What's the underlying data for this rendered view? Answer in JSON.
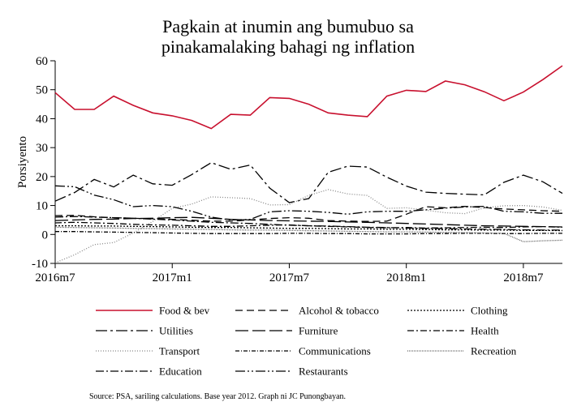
{
  "chart_data": {
    "type": "line",
    "title": [
      "Pagkain at inumin ang bumubuo sa",
      "pinakamalaking bahagi ng inflation"
    ],
    "xlabel": "",
    "ylabel": "Porsiyento",
    "ylim": [
      -10,
      60
    ],
    "yticks": [
      -10,
      0,
      10,
      20,
      30,
      40,
      50,
      60
    ],
    "xticks": [
      {
        "label": "2016m7",
        "index": 0
      },
      {
        "label": "2017m1",
        "index": 6
      },
      {
        "label": "2017m7",
        "index": 12
      },
      {
        "label": "2018m1",
        "index": 18
      },
      {
        "label": "2018m7",
        "index": 24
      }
    ],
    "x": [
      "2016m7",
      "2016m8",
      "2016m9",
      "2016m10",
      "2016m11",
      "2016m12",
      "2017m1",
      "2017m2",
      "2017m3",
      "2017m4",
      "2017m5",
      "2017m6",
      "2017m7",
      "2017m8",
      "2017m9",
      "2017m10",
      "2017m11",
      "2017m12",
      "2018m1",
      "2018m2",
      "2018m3",
      "2018m4",
      "2018m5",
      "2018m6",
      "2018m7",
      "2018m8",
      "2018m9"
    ],
    "series": [
      {
        "name": "Food & bev",
        "color": "#c8102e",
        "dash": "",
        "values": [
          49,
          43.2,
          43.2,
          47.8,
          44.6,
          42,
          41,
          39.4,
          36.6,
          41.5,
          41.2,
          47.3,
          47,
          45,
          42,
          41.2,
          40.7,
          47.8,
          49.8,
          49.4,
          53,
          51.7,
          49.3,
          46.2,
          49.2,
          53.5,
          58.3
        ]
      },
      {
        "name": "Alcohol & tobacco",
        "color": "#000000",
        "dash": "9,5",
        "values": [
          6.5,
          6.6,
          6.1,
          5.8,
          5.6,
          5.4,
          5.2,
          4.9,
          4.6,
          4.6,
          5.0,
          5.5,
          5.8,
          5.6,
          4.8,
          4.6,
          4.5,
          4.6,
          7.0,
          9.6,
          9.2,
          9.7,
          9.3,
          8.8,
          8.5,
          8.2,
          8.0
        ]
      },
      {
        "name": "Clothing",
        "color": "#000000",
        "dash": "2,2",
        "values": [
          3.0,
          3.0,
          2.9,
          2.9,
          2.8,
          2.7,
          2.6,
          2.5,
          2.4,
          2.4,
          2.3,
          2.2,
          2.1,
          2.1,
          2.0,
          1.9,
          1.9,
          1.8,
          1.8,
          1.7,
          1.6,
          1.6,
          1.5,
          1.5,
          1.4,
          1.4,
          1.3
        ]
      },
      {
        "name": "Utilities",
        "color": "#000000",
        "dash": "14,4,3,4",
        "values": [
          11.5,
          14.5,
          19,
          16.4,
          20.5,
          17.5,
          17,
          20.7,
          24.8,
          22.5,
          24,
          16,
          11,
          12.4,
          21.5,
          23.6,
          23.3,
          19.8,
          16.7,
          14.6,
          14.2,
          13.9,
          13.7,
          18,
          20.5,
          18.2,
          14.2
        ]
      },
      {
        "name": "Furniture",
        "color": "#000000",
        "dash": "16,5",
        "values": [
          4.8,
          5.0,
          5.2,
          5.3,
          5.5,
          5.6,
          5.8,
          5.9,
          5.6,
          5.2,
          5.0,
          4.8,
          4.7,
          4.6,
          4.5,
          4.3,
          4.2,
          4.0,
          3.8,
          3.6,
          3.4,
          3.2,
          3.0,
          2.9,
          2.8,
          2.7,
          2.6
        ]
      },
      {
        "name": "Health",
        "color": "#000000",
        "dash": "8,3,2,3",
        "values": [
          4.0,
          4.2,
          4.0,
          3.8,
          3.5,
          3.3,
          3.2,
          3.0,
          2.8,
          2.8,
          3.0,
          3.2,
          3.3,
          3.0,
          2.8,
          2.6,
          2.4,
          2.3,
          2.4,
          2.2,
          2.3,
          2.4,
          2.5,
          2.4,
          2.6,
          2.7,
          2.5
        ]
      },
      {
        "name": "Transport",
        "color": "#888888",
        "dash": "1,2",
        "values": [
          -9.8,
          -7,
          -3.5,
          -2.8,
          0.5,
          4.5,
          9.0,
          10.5,
          13,
          12.7,
          12.4,
          10.2,
          10.3,
          13.5,
          15.5,
          14.0,
          13.5,
          9.0,
          9.2,
          8.4,
          7.5,
          7.2,
          9.2,
          9.9,
          10.0,
          9.5,
          8.3
        ]
      },
      {
        "name": "Communications",
        "color": "#000000",
        "dash": "5,2,1,2",
        "values": [
          1.0,
          1.0,
          0.9,
          0.8,
          0.7,
          0.6,
          0.5,
          0.4,
          0.3,
          0.3,
          0.3,
          0.3,
          0.4,
          0.4,
          0.3,
          0.3,
          0.2,
          0.2,
          0.2,
          0.3,
          0.3,
          0.4,
          0.4,
          0.3,
          0.3,
          0.4,
          0.4
        ]
      },
      {
        "name": "Recreation",
        "color": "#666666",
        "dash": "1,1",
        "values": [
          2.5,
          2.4,
          2.3,
          2.2,
          2.1,
          2.0,
          1.9,
          1.8,
          1.7,
          1.6,
          1.5,
          1.5,
          1.4,
          1.3,
          1.2,
          1.1,
          1.0,
          0.9,
          0.9,
          0.8,
          0.7,
          0.6,
          0.5,
          0.4,
          -2.5,
          -2.2,
          -2.0
        ]
      },
      {
        "name": "Education",
        "color": "#000000",
        "dash": "10,3,2,3",
        "values": [
          6.0,
          6.2,
          6.0,
          5.8,
          5.6,
          5.3,
          5.0,
          4.6,
          4.2,
          4.0,
          3.8,
          3.5,
          3.2,
          3.0,
          2.9,
          2.7,
          2.5,
          2.4,
          2.2,
          2.1,
          2.0,
          1.9,
          1.8,
          1.7,
          1.6,
          1.5,
          1.5
        ]
      },
      {
        "name": "Restaurants",
        "color": "#000000",
        "dash": "12,3,2,3,2,3",
        "values": [
          16.8,
          16.5,
          13.6,
          12.0,
          9.6,
          10.0,
          9.6,
          8.0,
          6.0,
          5.0,
          5.2,
          7.8,
          8.2,
          8.0,
          7.6,
          7.0,
          7.8,
          8.0,
          8.0,
          8.5,
          9.1,
          9.5,
          9.7,
          8.0,
          7.8,
          7.3,
          7.3
        ]
      }
    ],
    "legend_position": "bottom",
    "legend_columns": 3,
    "source": "Source: PSA, sariling calculations. Base year 2012. Graph ni JC Punongbayan."
  }
}
